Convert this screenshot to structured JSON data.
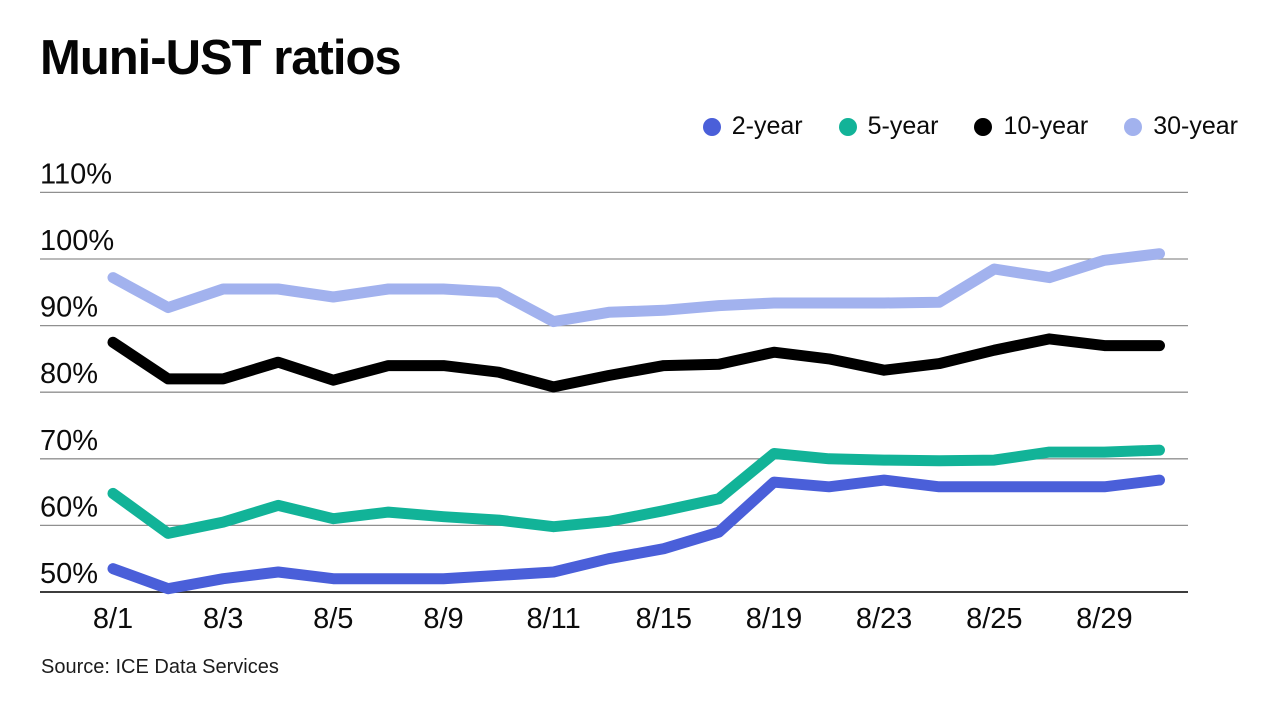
{
  "header": {
    "title": "Muni-UST ratios"
  },
  "source": {
    "text": "Source: ICE Data Services"
  },
  "colors": {
    "two_year": "#4a5fd9",
    "five_year": "#12b398",
    "ten_year": "#000000",
    "thirty_year": "#a2b2ee",
    "gridline": "#909090",
    "axis_line": "#3d3d3d"
  },
  "chart_data": {
    "type": "line",
    "title": "Muni-UST ratios",
    "grid": "horizontal",
    "legend_position": "top-right",
    "ylim": [
      47,
      113
    ],
    "y_unit": "%",
    "y_ticks": [
      {
        "label": "110%",
        "value": 110
      },
      {
        "label": "100%",
        "value": 100
      },
      {
        "label": "90%",
        "value": 90
      },
      {
        "label": "80%",
        "value": 80
      },
      {
        "label": "70%",
        "value": 70
      },
      {
        "label": "60%",
        "value": 60
      },
      {
        "label": "50%",
        "value": 50
      }
    ],
    "x_ticks": [
      {
        "label": "8/1",
        "index": 0
      },
      {
        "label": "8/3",
        "index": 2
      },
      {
        "label": "8/5",
        "index": 4
      },
      {
        "label": "8/9",
        "index": 6
      },
      {
        "label": "8/11",
        "index": 8
      },
      {
        "label": "8/15",
        "index": 10
      },
      {
        "label": "8/19",
        "index": 12
      },
      {
        "label": "8/23",
        "index": 14
      },
      {
        "label": "8/25",
        "index": 16
      },
      {
        "label": "8/29",
        "index": 18
      }
    ],
    "num_points": 20,
    "series": [
      {
        "name": "2-year",
        "color": "#4a5fd9",
        "values": [
          53.5,
          50.5,
          52.0,
          53.0,
          52.0,
          52.0,
          52.0,
          52.5,
          53.0,
          55.0,
          56.5,
          59.0,
          66.5,
          65.8,
          66.8,
          65.8,
          65.8,
          65.8,
          65.8,
          66.8
        ]
      },
      {
        "name": "5-year",
        "color": "#12b398",
        "values": [
          64.8,
          58.8,
          60.5,
          63.0,
          61.0,
          62.0,
          61.3,
          60.8,
          59.8,
          60.6,
          62.2,
          64.0,
          70.8,
          70.0,
          69.8,
          69.7,
          69.8,
          71.0,
          71.0,
          71.3
        ]
      },
      {
        "name": "10-year",
        "color": "#000000",
        "values": [
          87.5,
          82.0,
          82.0,
          84.5,
          81.8,
          84.0,
          84.0,
          83.0,
          80.8,
          82.5,
          84.0,
          84.2,
          86.0,
          85.0,
          83.3,
          84.3,
          86.3,
          88.0,
          87.0,
          87.0
        ]
      },
      {
        "name": "30-year",
        "color": "#a2b2ee",
        "values": [
          97.2,
          92.7,
          95.5,
          95.5,
          94.3,
          95.5,
          95.5,
          95.0,
          90.6,
          92.0,
          92.3,
          93.0,
          93.4,
          93.4,
          93.4,
          93.5,
          98.5,
          97.2,
          99.8,
          100.8
        ]
      }
    ]
  }
}
